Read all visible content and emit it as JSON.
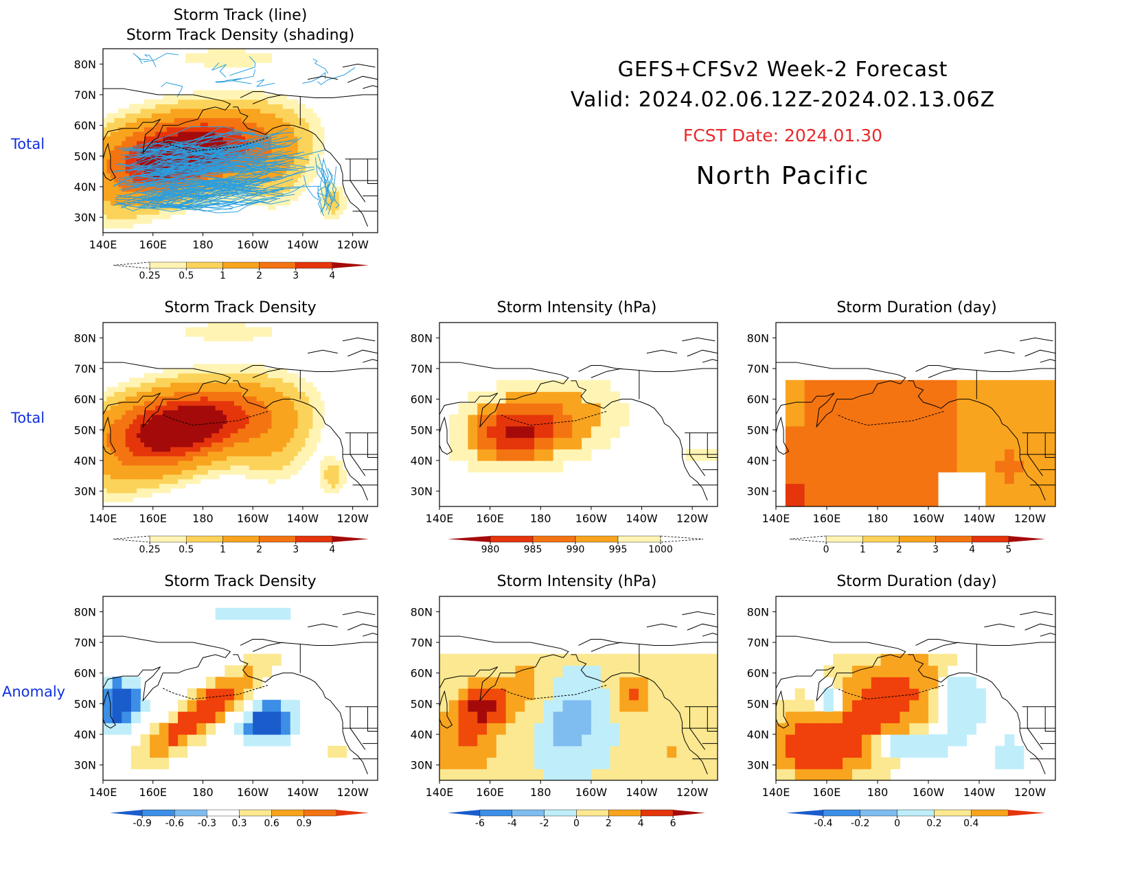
{
  "header": {
    "title": "GEFS+CFSv2 Week-2 Forecast",
    "valid": "Valid: 2024.02.06.12Z-2024.02.13.06Z",
    "fcst": "FCST Date: 2024.01.30",
    "region": "North Pacific",
    "fcst_color": "#e8282a"
  },
  "rows": [
    "Total",
    "Total",
    "Anomaly"
  ],
  "axes": {
    "lat_ticks": [
      "80N",
      "70N",
      "60N",
      "50N",
      "40N",
      "30N"
    ],
    "lon_ticks": [
      "140E",
      "160E",
      "180",
      "160W",
      "140W",
      "120W"
    ]
  },
  "chart_data": [
    {
      "id": "p0",
      "type": "heatmap",
      "title": "Storm Track (line)",
      "subtitle": "Storm Track Density (shading)",
      "variable": "storm track density + tracks",
      "colorbar": {
        "labels": [
          "0.25",
          "0.5",
          "1",
          "2",
          "3",
          "4"
        ]
      },
      "colors": [
        "#fff4b4",
        "#fcd35a",
        "#f9a41e",
        "#f47412",
        "#e5350b",
        "#a50a0a"
      ],
      "line_color": "#2a9ee0",
      "field": {
        "center": [
          172,
          52
        ],
        "peak": 4.6,
        "extent": "broad elongated SW-NE with secondary blob near 128W 35N"
      }
    },
    {
      "id": "p1",
      "type": "heatmap",
      "title": "Storm Track Density",
      "colorbar": {
        "labels": [
          "0.25",
          "0.5",
          "1",
          "2",
          "3",
          "4"
        ]
      },
      "colors": [
        "#fff4b4",
        "#fcd35a",
        "#f9a41e",
        "#f47412",
        "#e5350b",
        "#a50a0a"
      ],
      "field": {
        "center": [
          175,
          52
        ],
        "peak": 4.6
      }
    },
    {
      "id": "p2",
      "type": "heatmap",
      "title": "Storm Intensity (hPa)",
      "colorbar": {
        "labels": [
          "980",
          "985",
          "990",
          "995",
          "1000"
        ]
      },
      "colors": [
        "#a50a0a",
        "#e5350b",
        "#f47412",
        "#f9a41e",
        "#fff4b4"
      ],
      "field": {
        "center": [
          172,
          50
        ],
        "min_hpa": 977
      }
    },
    {
      "id": "p3",
      "type": "heatmap",
      "title": "Storm Duration (day)",
      "colorbar": {
        "labels": [
          "0",
          "1",
          "2",
          "3",
          "4",
          "5"
        ]
      },
      "colors": [
        "#fff4b4",
        "#fcd35a",
        "#f9a41e",
        "#f47412",
        "#e5350b",
        "#a50a0a"
      ],
      "field": {
        "typical_days": 3.6
      }
    },
    {
      "id": "p4",
      "type": "heatmap",
      "title": "Storm Track Density",
      "colorbar": {
        "labels": [
          "-0.9",
          "-0.6",
          "-0.3",
          "0.3",
          "0.6",
          "0.9"
        ]
      },
      "colors": [
        "#1a5ccc",
        "#3c8ee6",
        "#7fbcf0",
        "#bfeefa",
        "#fbe890",
        "#f9a41e",
        "#f47412",
        "#e5350b"
      ],
      "field": {
        "positive_band": "SW-NE 150E-150W",
        "negative_centers": [
          [
            150,
            50
          ],
          [
            145,
            45
          ]
        ]
      }
    },
    {
      "id": "p5",
      "type": "heatmap",
      "title": "Storm Intensity (hPa)",
      "colorbar": {
        "labels": [
          "-6",
          "-4",
          "-2",
          "0",
          "2",
          "4",
          "6"
        ]
      },
      "colors": [
        "#1a5ccc",
        "#3c8ee6",
        "#7fbcf0",
        "#bfeefa",
        "#fbe890",
        "#f9a41e",
        "#e5350b",
        "#a50a0a"
      ],
      "field": {
        "negative_band": "180-160W",
        "positive": "west and east flanks"
      }
    },
    {
      "id": "p6",
      "type": "heatmap",
      "title": "Storm Duration (day)",
      "colorbar": {
        "labels": [
          "-0.4",
          "-0.2",
          "0",
          "0.2",
          "0.4"
        ]
      },
      "colors": [
        "#1a5ccc",
        "#3c8ee6",
        "#7fbcf0",
        "#bfeefa",
        "#fbe890",
        "#f9a41e",
        "#e5350b"
      ],
      "field": {
        "positive_band": "broad 150E-150W",
        "negative_pockets": [
          [
            160,
            50
          ],
          [
            172,
            35
          ]
        ]
      }
    }
  ]
}
